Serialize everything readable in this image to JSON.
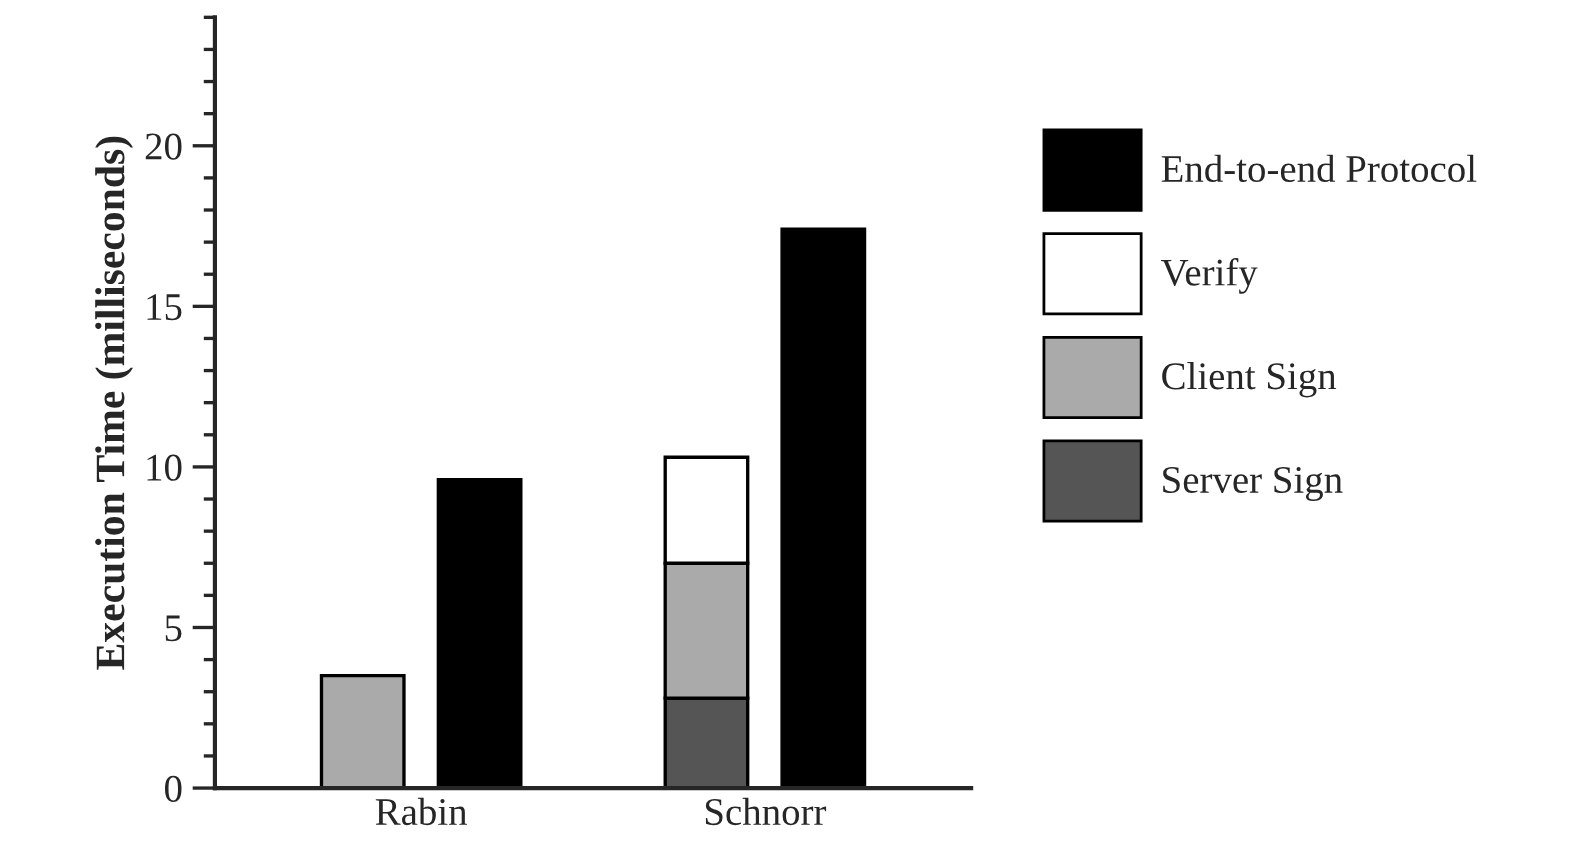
{
  "chart_data": {
    "type": "bar",
    "ylabel": "Execution Time (milliseconds)",
    "categories": [
      "Rabin",
      "Schnorr"
    ],
    "series": [
      {
        "name": "Server Sign",
        "color": "#555555",
        "values": [
          null,
          2.8
        ],
        "base": [
          null,
          0
        ]
      },
      {
        "name": "Client Sign",
        "color": "#aaaaaa",
        "values": [
          3.5,
          4.2
        ],
        "base": [
          0,
          2.8
        ]
      },
      {
        "name": "Verify",
        "color": "#ffffff",
        "values": [
          null,
          3.3
        ],
        "base": [
          null,
          7.0
        ]
      },
      {
        "name": "End-to-end Protocol",
        "color": "#000000",
        "values": [
          9.6,
          17.4
        ],
        "base": [
          0,
          0
        ]
      }
    ],
    "ylim": [
      0,
      24
    ],
    "yticks": [
      0,
      5,
      10,
      15,
      20
    ],
    "grid": false,
    "legend": "right"
  }
}
